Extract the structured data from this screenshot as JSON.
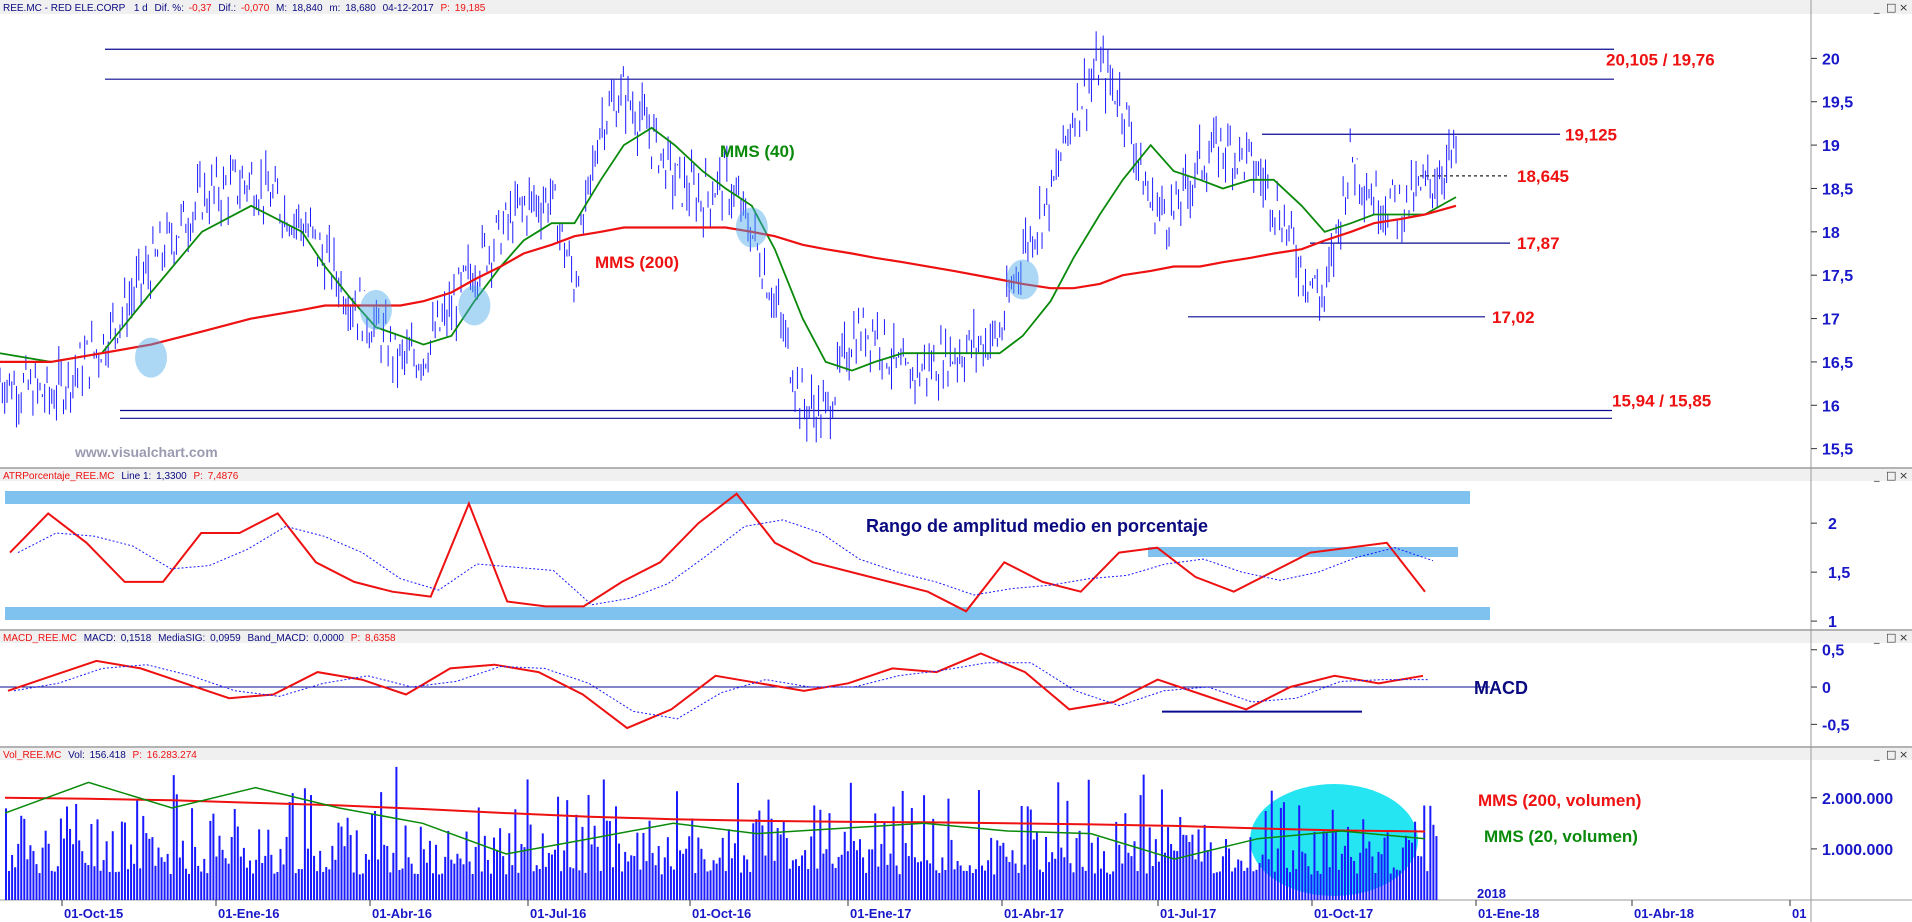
{
  "panes": {
    "price": {
      "header": {
        "ticker": "REE.MC - RED ELE.CORP",
        "period": "1 d",
        "dif_pct_label": "Dif. %:",
        "dif_pct": "-0,37",
        "dif_label": "Dif.:",
        "dif": "-0,070",
        "max_label": "M:",
        "max": "18,840",
        "min_label": "m:",
        "min": "18,680",
        "date": "04-12-2017",
        "close_label": "P:",
        "close": "19,185"
      },
      "watermark": "www.visualchart.com",
      "annotations": {
        "mms40": "MMS (40)",
        "mms200": "MMS (200)"
      },
      "levels": {
        "top": "20,105 / 19,76",
        "resistance": "19,125",
        "last": "18,645",
        "support1": "17,87",
        "support2": "17,02",
        "bottom": "15,94 / 15,85"
      }
    },
    "atr": {
      "header": {
        "name": "ATRPorcentaje_REE.MC",
        "line_label": "Line 1:",
        "line": "1,3300",
        "p_label": "P:",
        "p": "7,4876"
      },
      "annotation": "Rango de amplitud medio en porcentaje"
    },
    "macd": {
      "header": {
        "name": "MACD_REE.MC",
        "macd_label": "MACD:",
        "macd": "0,1518",
        "signal_label": "MediaSIG:",
        "signal": "0,0959",
        "band_label": "Band_MACD:",
        "band": "0,0000",
        "p_label": "P:",
        "p": "8,6358"
      },
      "annotation": "MACD"
    },
    "volume": {
      "header": {
        "name": "Vol_REE.MC",
        "vol_label": "Vol:",
        "vol": "156.418",
        "p_label": "P:",
        "p": "16.283.274"
      },
      "annotations": {
        "mms200": "MMS (200, volumen)",
        "mms20": "MMS (20, volumen)"
      },
      "year_marker": "2018"
    }
  },
  "colors": {
    "price_bars": "#1a1aff",
    "mms40": "#0a8a0a",
    "mms200": "#ee1111",
    "level_lines": "#0a0a90",
    "highlight": "#4aa8e8",
    "atr_line": "#ee1111",
    "signal_line": "#1a1aff",
    "volume_bars": "#1a1aff",
    "volume_glow": "#00e0f0"
  },
  "window_buttons": [
    "_",
    "□",
    "×"
  ],
  "chart_data": [
    {
      "type": "line",
      "title": "REE.MC - RED ELE.CORP",
      "x_ticks": [
        "01-Oct-15",
        "01-Ene-16",
        "01-Abr-16",
        "01-Jul-16",
        "01-Oct-16",
        "01-Ene-17",
        "01-Abr-17",
        "01-Jul-17",
        "01-Oct-17",
        "01-Ene-18",
        "01-Abr-18",
        "01"
      ],
      "y_ticks": [
        "20",
        "19,5",
        "19",
        "18,5",
        "18",
        "17,5",
        "17",
        "16,5",
        "16",
        "15,5"
      ],
      "ylim": [
        15.3,
        20.5
      ],
      "series": [
        {
          "name": "Price",
          "x": [
            "2015-07-01",
            "2015-08-01",
            "2015-09-01",
            "2015-10-01",
            "2015-11-01",
            "2015-12-01",
            "2016-01-01",
            "2016-01-15",
            "2016-02-01",
            "2016-02-15",
            "2016-03-01",
            "2016-03-15",
            "2016-04-01",
            "2016-04-15",
            "2016-05-01",
            "2016-05-15",
            "2016-06-01",
            "2016-06-15",
            "2016-07-01",
            "2016-07-15",
            "2016-08-01",
            "2016-08-15",
            "2016-09-01",
            "2016-09-15",
            "2016-10-01",
            "2016-10-15",
            "2016-11-01",
            "2016-11-15",
            "2016-12-01",
            "2016-12-15",
            "2017-01-01",
            "2017-02-01",
            "2017-03-01",
            "2017-03-15",
            "2017-04-01",
            "2017-04-15",
            "2017-05-01",
            "2017-05-15",
            "2017-06-01",
            "2017-06-15",
            "2017-07-01",
            "2017-07-15",
            "2017-08-01",
            "2017-08-15",
            "2017-09-01",
            "2017-09-15",
            "2017-10-01",
            "2017-10-15",
            "2017-11-01",
            "2017-11-15",
            "2017-12-04"
          ],
          "values": [
            16.3,
            16.1,
            16.7,
            17.6,
            18.4,
            18.6,
            18.1,
            17.7,
            17.2,
            16.9,
            16.5,
            16.6,
            17.1,
            17.6,
            18.0,
            18.3,
            18.4,
            17.4,
            19.3,
            19.6,
            19.1,
            18.6,
            18.4,
            18.6,
            18.0,
            17.2,
            16.0,
            15.9,
            16.8,
            16.9,
            16.3,
            16.6,
            16.8,
            17.8,
            18.4,
            19.4,
            19.9,
            19.5,
            18.3,
            18.2,
            18.8,
            19.0,
            18.8,
            18.4,
            17.6,
            17.2,
            18.9,
            18.4,
            18.3,
            18.5,
            18.9
          ]
        },
        {
          "name": "MMS (40)",
          "values": [
            16.6,
            16.5,
            16.6,
            17.3,
            18.0,
            18.3,
            18.0,
            17.6,
            17.2,
            16.9,
            16.8,
            16.7,
            16.8,
            17.2,
            17.6,
            17.9,
            18.1,
            18.1,
            18.6,
            19.0,
            19.2,
            19.0,
            18.7,
            18.5,
            18.3,
            17.8,
            17.0,
            16.5,
            16.4,
            16.5,
            16.6,
            16.6,
            16.6,
            16.8,
            17.2,
            17.7,
            18.2,
            18.6,
            19.0,
            18.7,
            18.6,
            18.5,
            18.6,
            18.6,
            18.3,
            18.0,
            18.1,
            18.2,
            18.2,
            18.2,
            18.4
          ]
        },
        {
          "name": "MMS (200)",
          "values": [
            16.5,
            16.5,
            16.6,
            16.7,
            16.85,
            17.0,
            17.1,
            17.15,
            17.15,
            17.15,
            17.15,
            17.2,
            17.3,
            17.45,
            17.6,
            17.75,
            17.85,
            17.95,
            18.0,
            18.05,
            18.05,
            18.05,
            18.05,
            18.05,
            18.0,
            17.95,
            17.85,
            17.8,
            17.75,
            17.7,
            17.65,
            17.55,
            17.45,
            17.4,
            17.35,
            17.35,
            17.4,
            17.5,
            17.55,
            17.6,
            17.6,
            17.65,
            17.7,
            17.75,
            17.8,
            17.9,
            18.0,
            18.1,
            18.15,
            18.2,
            18.3
          ]
        }
      ],
      "horizontal_levels": [
        20.105,
        19.76,
        19.125,
        18.645,
        17.87,
        17.02,
        15.94,
        15.85
      ]
    },
    {
      "type": "line",
      "title": "ATRPorcentaje_REE.MC",
      "y_ticks": [
        "2",
        "1,5",
        "1"
      ],
      "ylim": [
        0.95,
        2.4
      ],
      "series": [
        {
          "name": "Line 1",
          "values": [
            1.7,
            2.1,
            1.8,
            1.4,
            1.4,
            1.9,
            1.9,
            2.1,
            1.6,
            1.4,
            1.3,
            1.25,
            2.2,
            1.2,
            1.15,
            1.15,
            1.4,
            1.6,
            2.0,
            2.3,
            1.8,
            1.6,
            1.5,
            1.4,
            1.3,
            1.1,
            1.6,
            1.4,
            1.3,
            1.7,
            1.75,
            1.45,
            1.3,
            1.5,
            1.7,
            1.75,
            1.8,
            1.3
          ]
        }
      ]
    },
    {
      "type": "line",
      "title": "MACD_REE.MC",
      "y_ticks": [
        "0,5",
        "0",
        "-0,5"
      ],
      "ylim": [
        -0.75,
        0.55
      ],
      "series": [
        {
          "name": "MACD",
          "values": [
            -0.05,
            0.15,
            0.35,
            0.25,
            0.05,
            -0.15,
            -0.1,
            0.2,
            0.1,
            -0.1,
            0.25,
            0.3,
            0.2,
            -0.1,
            -0.55,
            -0.3,
            0.15,
            0.05,
            -0.05,
            0.05,
            0.25,
            0.2,
            0.45,
            0.2,
            -0.3,
            -0.2,
            0.1,
            -0.1,
            -0.3,
            0.0,
            0.15,
            0.05,
            0.15
          ]
        }
      ]
    },
    {
      "type": "bar",
      "title": "Vol_REE.MC",
      "y_ticks": [
        "2.000.000",
        "1.000.000"
      ],
      "ylim": [
        0,
        2700000
      ],
      "series": [
        {
          "name": "MMS (200, volumen)",
          "values": [
            2000000,
            1980000,
            1950000,
            1900000,
            1850000,
            1780000,
            1700000,
            1630000,
            1580000,
            1550000,
            1530000,
            1520000,
            1500000,
            1480000,
            1450000,
            1400000,
            1360000,
            1340000
          ]
        },
        {
          "name": "MMS (20, volumen)",
          "values": [
            1700000,
            2300000,
            1800000,
            2200000,
            1800000,
            1500000,
            900000,
            1200000,
            1500000,
            1300000,
            1400000,
            1500000,
            1350000,
            1300000,
            800000,
            1200000,
            1350000,
            1200000
          ]
        }
      ]
    }
  ]
}
